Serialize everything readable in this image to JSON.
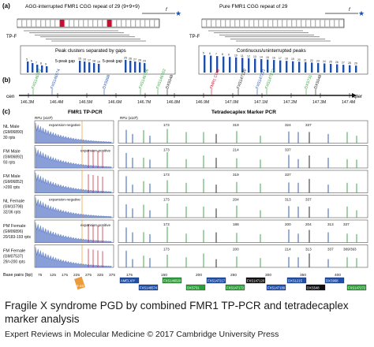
{
  "figure": {
    "panel_labels": [
      "(a)",
      "(b)",
      "(c)"
    ],
    "panel_a": {
      "left_title": "AGG-interrupted FMR1 CGG repeat of 29 (9+9+9)",
      "right_title": "Pure FMR1 CGG repeat of 29",
      "primer_f": "f",
      "primer_tpf": "TP-F",
      "left_box_title": "Peak clusters separated by gaps",
      "right_box_title": "Continuous/uninterrupted peaks",
      "gap_label": "5-peak gap",
      "left_peak_numbers": [
        "5",
        "6",
        "7",
        "8",
        "9"
      ],
      "left_peak_numbers2": [
        "15",
        "16",
        "17",
        "18",
        "19"
      ],
      "left_peak_numbers3": [
        "25",
        "26",
        "27",
        "28",
        "29"
      ],
      "right_peak_numbers": [
        "5",
        "6",
        "7",
        "8",
        "9",
        "10",
        "11",
        "12",
        "13",
        "14",
        "15",
        "16",
        "17",
        "18",
        "19",
        "20",
        "21",
        "22",
        "23",
        "24",
        "25",
        "26",
        "27",
        "28",
        "29"
      ]
    },
    "panel_b": {
      "cen": "cen",
      "qter": "qter",
      "axis_ticks": [
        "146.3M",
        "146.4M",
        "146.5M",
        "146.6M",
        "146.7M",
        "146.8M",
        "146.9M",
        "147.0M",
        "147.1M",
        "147.2M",
        "147.3M",
        "147.4M"
      ],
      "markers": [
        {
          "name": "FXS146342",
          "color": "#2e9e3a"
        },
        {
          "name": "FXS146574",
          "color": "#1f4fa8"
        },
        {
          "name": "DXS998",
          "color": "#1f4fa8"
        },
        {
          "name": "FXS146756",
          "color": "#2e9e3a"
        },
        {
          "name": "FXS146762",
          "color": "#2e9e3a"
        },
        {
          "name": "DXS548",
          "color": "#111111"
        },
        {
          "name": "FMR1 CGG",
          "color": "#c8102e"
        },
        {
          "name": "FXS147120",
          "color": "#111111"
        },
        {
          "name": "FXS147221",
          "color": "#1f4fa8"
        },
        {
          "name": "FXS147272",
          "color": "#2e9e3a"
        },
        {
          "name": "DXS731",
          "color": "#2e9e3a"
        },
        {
          "name": "DXS548b",
          "color": "#111111"
        }
      ]
    },
    "panel_c": {
      "left_title": "FMR1 TP-PCR",
      "right_title": "Tetradecaplex Marker PCR",
      "rfu_label": "RFU (x10³)",
      "rfu_label_right": "RFU (x10³)",
      "expansion_negative": "expansion-negative",
      "expansion_positive": "expansion-positive",
      "base_pairs_label": "Base pairs (bp)",
      "x_ticks": [
        "75",
        "125",
        "175",
        "225",
        "275",
        "325",
        "375"
      ],
      "x_ticks_right": [
        "175",
        "150",
        "200",
        "250",
        "300",
        "350",
        "400"
      ],
      "highlight_label": "30-40",
      "rows": [
        {
          "name": "NL Male",
          "id": "(GM06890)",
          "rpt": "30 rpts",
          "peaks": [
            "173",
            "319",
            "324",
            "337"
          ]
        },
        {
          "name": "FM Male",
          "id": "(GM06892)",
          "rpt": "93 rpts",
          "peaks": [
            "173",
            "214",
            "337"
          ]
        },
        {
          "name": "FM Male",
          "id": "(GM06852)",
          "rpt": ">200 rpts",
          "peaks": [
            "173",
            "319",
            "337"
          ]
        },
        {
          "name": "NL Female",
          "id": "(GM10798)",
          "rpt": "32/36 rpts",
          "peaks": [
            "173",
            "204",
            "313",
            "337"
          ]
        },
        {
          "name": "PM Female",
          "id": "(GM06896)",
          "rpt": "20/183-193 rpts",
          "peaks": [
            "173",
            "188",
            "200",
            "204",
            "313",
            "337"
          ]
        },
        {
          "name": "FM Female",
          "id": "(GM07537)",
          "rpt": "29/>200 rpts",
          "peaks": [
            "173",
            "200",
            "214",
            "313",
            "337",
            "389/393"
          ]
        }
      ],
      "marker_boxes": [
        {
          "name": "AMELX/Y",
          "color": "#1f4fa8"
        },
        {
          "name": "FXS146574",
          "color": "#1f4fa8"
        },
        {
          "name": "FXS146820",
          "color": "#2e9e3a"
        },
        {
          "name": "DXS731",
          "color": "#2e9e3a"
        },
        {
          "name": "FXS147217",
          "color": "#1f4fa8"
        },
        {
          "name": "FXS147172",
          "color": "#2e9e3a"
        },
        {
          "name": "FXS147120",
          "color": "#111111"
        },
        {
          "name": "FXS147189",
          "color": "#1f4fa8"
        },
        {
          "name": "DXS1215",
          "color": "#1f4fa8"
        },
        {
          "name": "DXS548",
          "color": "#111111"
        },
        {
          "name": "DXS998",
          "color": "#1f4fa8"
        },
        {
          "name": "FXS147272",
          "color": "#2e9e3a"
        }
      ]
    }
  },
  "caption": {
    "title": "Fragile X syndrome PGD by combined FMR1 TP-PCR and tetradecaplex marker analysis",
    "source": "Expert Reviews in Molecular Medicine © 2017 Cambridge University Press"
  },
  "colors": {
    "blue": "#1f4fa8",
    "green": "#2e9e3a",
    "black": "#111111",
    "red": "#c8102e",
    "orange": "#e8891a"
  }
}
